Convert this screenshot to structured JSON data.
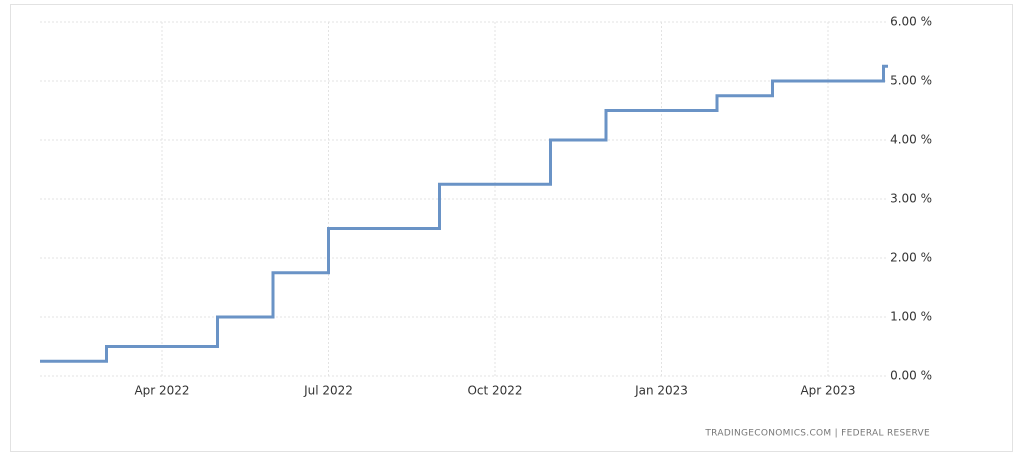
{
  "chart_data": {
    "type": "step-line",
    "source": "TRADINGECONOMICS.COM | FEDERAL RESERVE",
    "x": [
      "2022-01",
      "2022-03",
      "2022-05",
      "2022-06",
      "2022-07",
      "2022-09",
      "2022-11",
      "2022-12",
      "2023-02",
      "2023-03",
      "2023-05"
    ],
    "series": [
      {
        "color": "#6a93c6",
        "values": [
          0.25,
          0.5,
          1.0,
          1.75,
          2.5,
          3.25,
          4.0,
          4.5,
          4.75,
          5.0,
          5.25
        ]
      }
    ],
    "ylim": [
      0,
      6
    ],
    "yticks": [
      {
        "value": 0,
        "label": "0.00 %"
      },
      {
        "value": 1,
        "label": "1.00 %"
      },
      {
        "value": 2,
        "label": "2.00 %"
      },
      {
        "value": 3,
        "label": "3.00 %"
      },
      {
        "value": 4,
        "label": "4.00 %"
      },
      {
        "value": 5,
        "label": "5.00 %"
      },
      {
        "value": 6,
        "label": "6.00 %"
      }
    ],
    "xticks": [
      {
        "value": "2022-04",
        "label": "Apr 2022"
      },
      {
        "value": "2022-07",
        "label": "Jul 2022"
      },
      {
        "value": "2022-10",
        "label": "Oct 2022"
      },
      {
        "value": "2023-01",
        "label": "Jan 2023"
      },
      {
        "value": "2023-04",
        "label": "Apr 2023"
      }
    ],
    "y_axis_side": "right",
    "grid": true
  }
}
